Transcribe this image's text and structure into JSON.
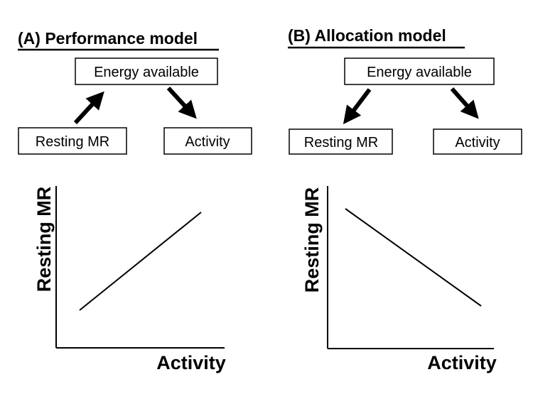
{
  "panels": [
    {
      "title": "(A) Performance model",
      "top_box": "Energy available",
      "left_box": "Resting MR",
      "right_box": "Activity",
      "arrow_left_direction": "toward-energy",
      "arrow_right_direction": "toward-activity",
      "xlabel": "Activity",
      "ylabel": "Resting MR",
      "relationship": "positive"
    },
    {
      "title": "(B) Allocation model",
      "top_box": "Energy available",
      "left_box": "Resting MR",
      "right_box": "Activity",
      "arrow_left_direction": "toward-resting-mr",
      "arrow_right_direction": "toward-activity",
      "xlabel": "Activity",
      "ylabel": "Resting MR",
      "relationship": "negative"
    }
  ],
  "colors": {
    "ink": "#000000",
    "background": "#ffffff"
  }
}
